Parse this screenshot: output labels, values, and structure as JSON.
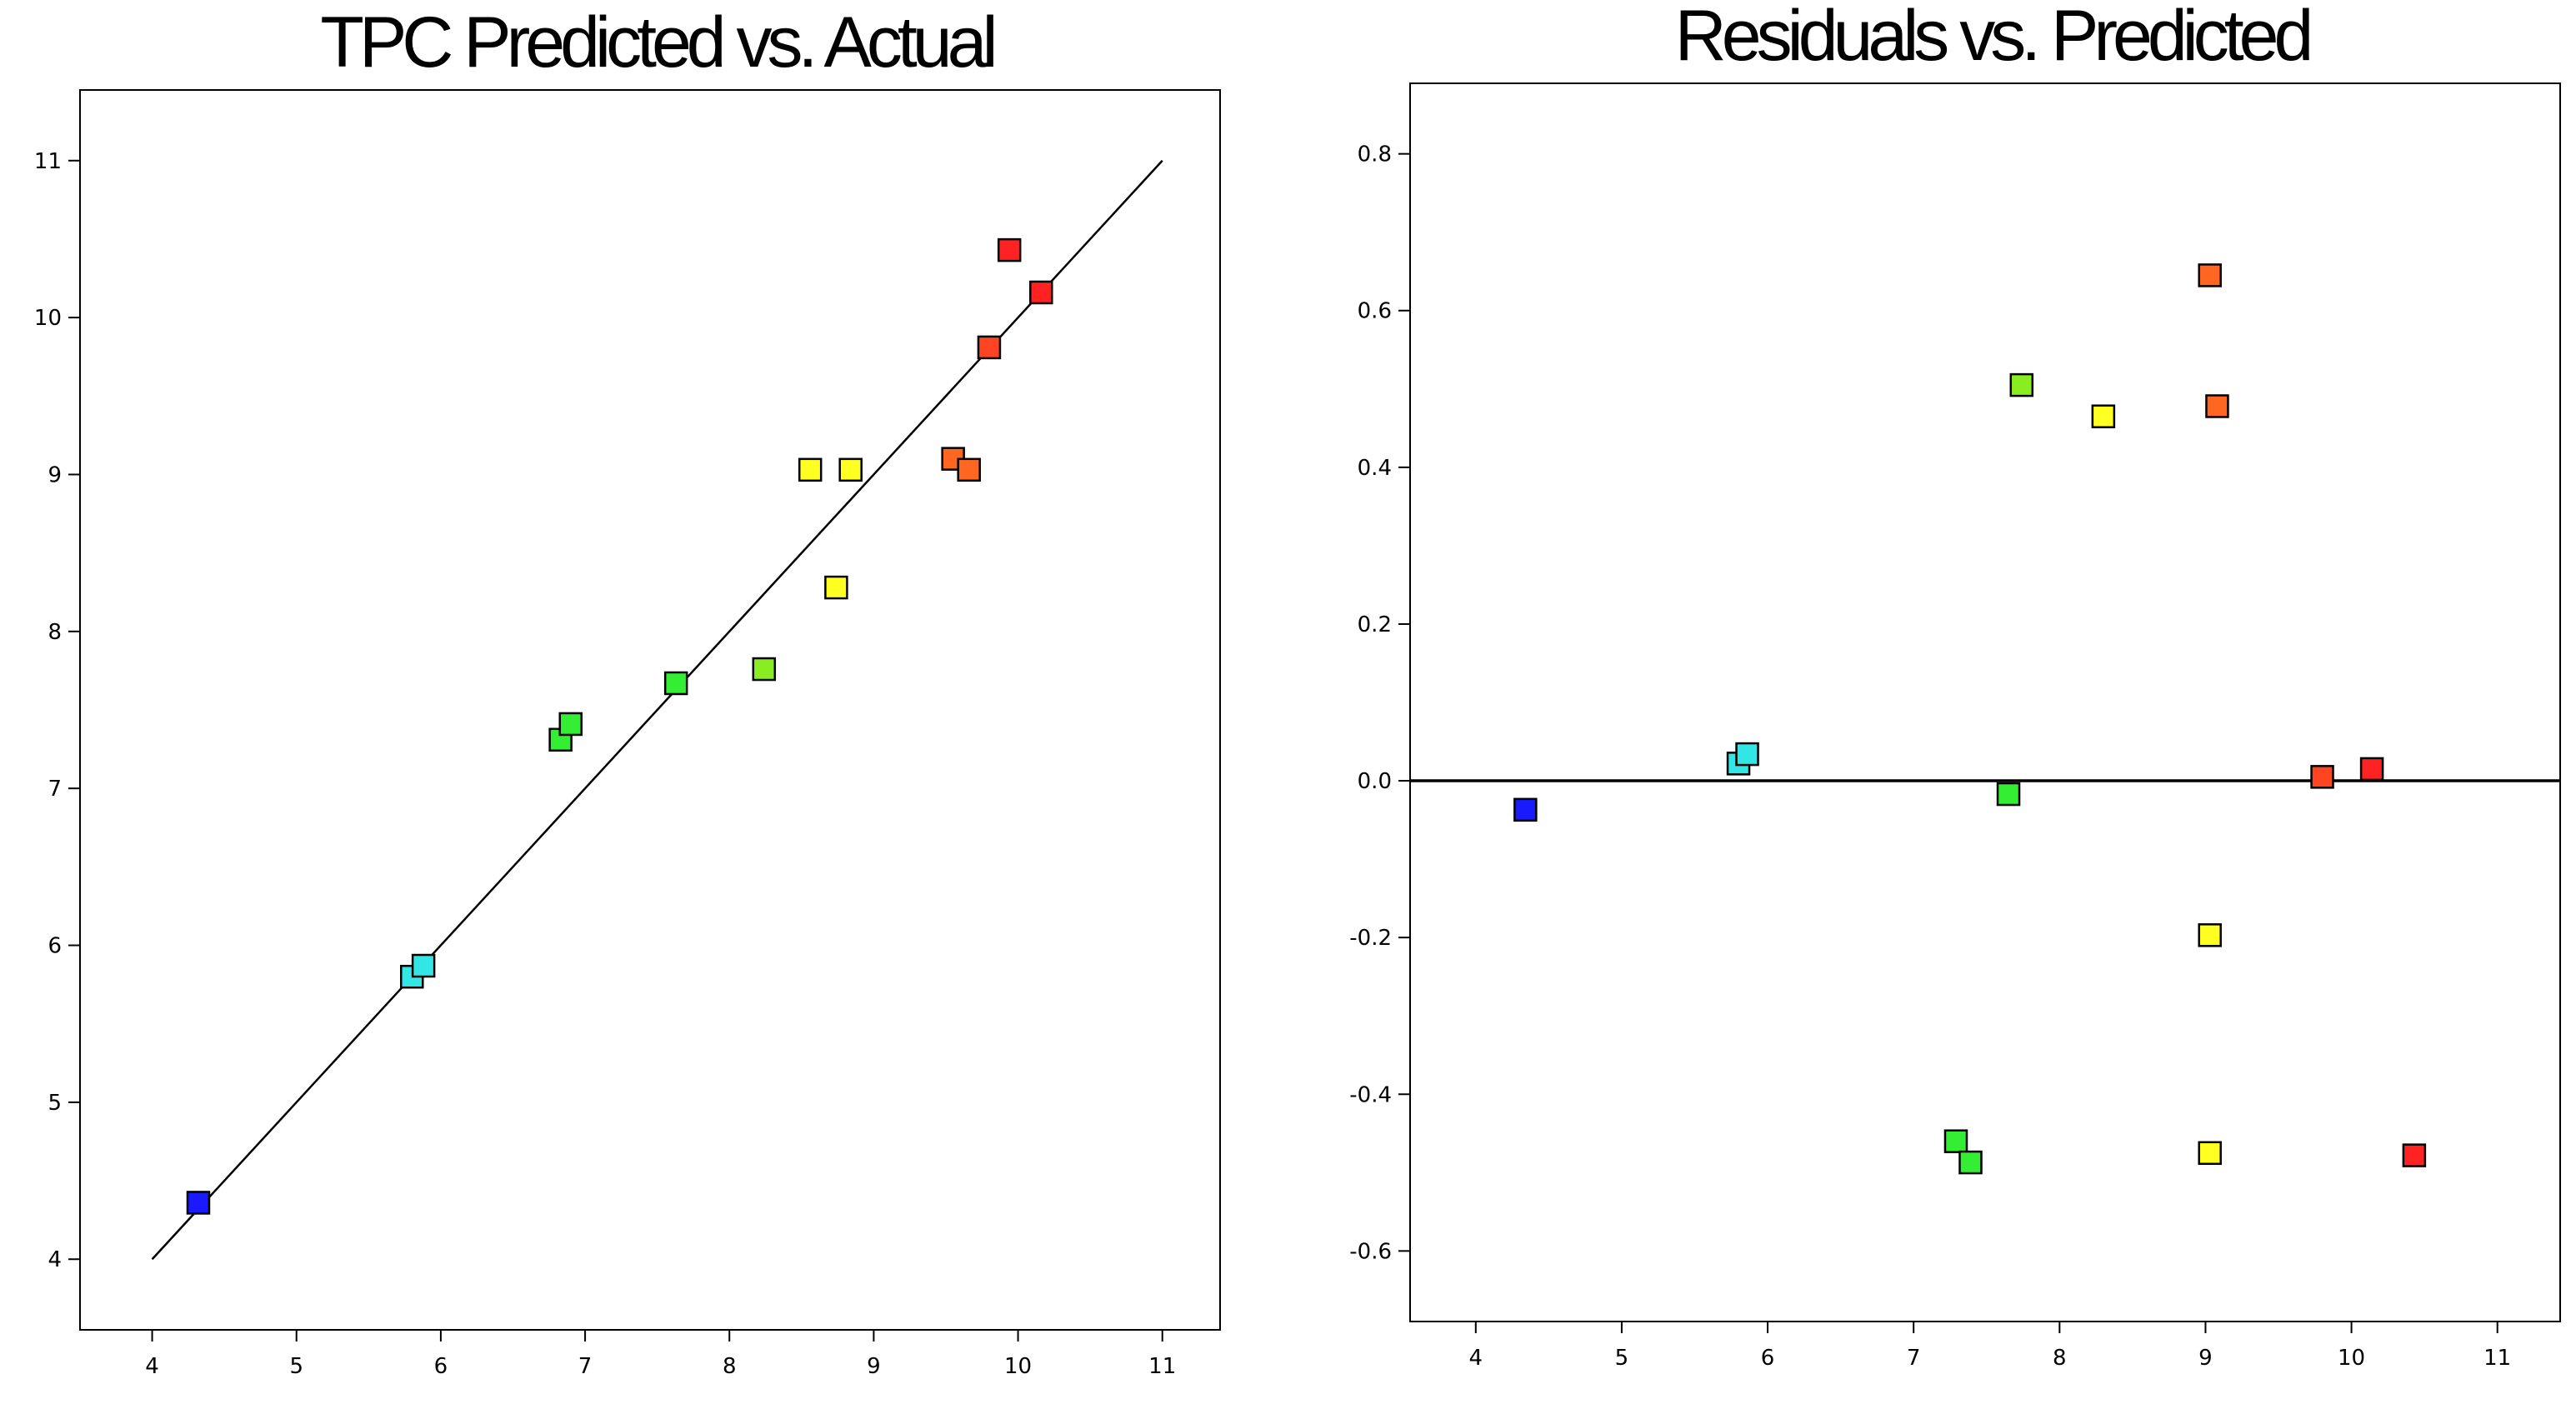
{
  "chart_data": [
    {
      "type": "scatter",
      "title": "TPC Predicted vs. Actual",
      "xlabel": "",
      "ylabel": "",
      "xlim": [
        3.5,
        11.4
      ],
      "ylim": [
        3.55,
        11.45
      ],
      "x_ticks": [
        4,
        5,
        6,
        7,
        8,
        9,
        10,
        11
      ],
      "y_ticks": [
        4,
        5,
        6,
        7,
        8,
        9,
        10,
        11
      ],
      "grid": false,
      "reference_line": {
        "x": [
          4,
          11
        ],
        "y": [
          4,
          11
        ]
      },
      "points": [
        {
          "x": 4.32,
          "y": 4.36,
          "color": "#1a1aff"
        },
        {
          "x": 5.8,
          "y": 5.8,
          "color": "#33e6e6"
        },
        {
          "x": 5.88,
          "y": 5.87,
          "color": "#33e6e6"
        },
        {
          "x": 6.83,
          "y": 7.31,
          "color": "#33ee33"
        },
        {
          "x": 6.9,
          "y": 7.41,
          "color": "#33ee33"
        },
        {
          "x": 7.63,
          "y": 7.67,
          "color": "#33ee33"
        },
        {
          "x": 8.24,
          "y": 7.76,
          "color": "#88ee22"
        },
        {
          "x": 8.56,
          "y": 9.03,
          "color": "#ffff22"
        },
        {
          "x": 8.84,
          "y": 9.03,
          "color": "#ffff22"
        },
        {
          "x": 8.74,
          "y": 8.28,
          "color": "#ffff22"
        },
        {
          "x": 9.55,
          "y": 9.1,
          "color": "#ff6622"
        },
        {
          "x": 9.66,
          "y": 9.03,
          "color": "#ff6622"
        },
        {
          "x": 9.8,
          "y": 9.81,
          "color": "#ff4422"
        },
        {
          "x": 9.94,
          "y": 10.43,
          "color": "#ff2222"
        },
        {
          "x": 10.16,
          "y": 10.16,
          "color": "#ff2222"
        }
      ]
    },
    {
      "type": "scatter",
      "title": "Residuals vs. Predicted",
      "xlabel": "",
      "ylabel": "",
      "xlim": [
        3.55,
        11.43
      ],
      "ylim": [
        -0.69,
        0.89
      ],
      "x_ticks": [
        4,
        5,
        6,
        7,
        8,
        9,
        10,
        11
      ],
      "y_ticks": [
        0.8,
        0.6,
        0.4,
        0.2,
        0.0,
        -0.2,
        -0.4,
        -0.6
      ],
      "y_tick_labels": [
        "0.8",
        "0.6",
        "0.4",
        "0.2",
        "0.0",
        "-0.2",
        "-0.4",
        "-0.6"
      ],
      "grid": false,
      "zero_line": 0,
      "points": [
        {
          "x": 4.34,
          "y": -0.037,
          "color": "#1a1aff"
        },
        {
          "x": 5.8,
          "y": 0.022,
          "color": "#33e6e6"
        },
        {
          "x": 5.86,
          "y": 0.034,
          "color": "#33e6e6"
        },
        {
          "x": 7.29,
          "y": -0.46,
          "color": "#33ee33"
        },
        {
          "x": 7.39,
          "y": -0.487,
          "color": "#33ee33"
        },
        {
          "x": 7.65,
          "y": -0.017,
          "color": "#33ee33"
        },
        {
          "x": 7.74,
          "y": 0.505,
          "color": "#88ee22"
        },
        {
          "x": 8.3,
          "y": 0.465,
          "color": "#ffff22"
        },
        {
          "x": 9.03,
          "y": -0.197,
          "color": "#ffff22"
        },
        {
          "x": 9.03,
          "y": -0.475,
          "color": "#ffff22"
        },
        {
          "x": 9.03,
          "y": 0.645,
          "color": "#ff6622"
        },
        {
          "x": 9.08,
          "y": 0.478,
          "color": "#ff6622"
        },
        {
          "x": 9.8,
          "y": 0.005,
          "color": "#ff4422"
        },
        {
          "x": 10.14,
          "y": 0.015,
          "color": "#ff2222"
        },
        {
          "x": 10.43,
          "y": -0.478,
          "color": "#ff2222"
        }
      ]
    }
  ]
}
